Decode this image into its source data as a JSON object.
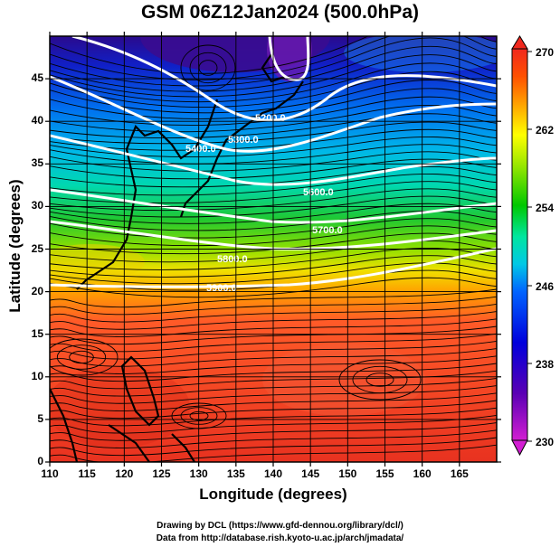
{
  "title": "GSM 06Z12Jan2024 (500.0hPa)",
  "axes": {
    "xlabel": "Longitude (degrees)",
    "ylabel": "Latitude  (degrees)",
    "xticks": [
      "110",
      "115",
      "120",
      "125",
      "130",
      "135",
      "140",
      "145",
      "150",
      "155",
      "160",
      "165"
    ],
    "yticks": [
      "0",
      "5",
      "10",
      "15",
      "20",
      "25",
      "30",
      "35",
      "40",
      "45"
    ],
    "xlim": [
      110,
      170
    ],
    "ylim": [
      0,
      50
    ]
  },
  "colorbar": {
    "ticks": [
      "230",
      "238",
      "246",
      "254",
      "262",
      "270"
    ],
    "range": [
      230,
      270
    ],
    "colors": [
      "#d21ed2",
      "#5a00b4",
      "#0000dc",
      "#0064ff",
      "#00c8e6",
      "#00e6a0",
      "#00c800",
      "#96e600",
      "#ffff00",
      "#ffa000",
      "#ff5000",
      "#f0281e"
    ]
  },
  "contours": {
    "labels": [
      "5200.0",
      "5300.0",
      "5400.0",
      "5600.0",
      "5700.0",
      "5800.0",
      "5900.0"
    ]
  },
  "credits": {
    "line1": "Drawing by DCL (https://www.gfd-dennou.org/library/dcl/)",
    "line2": "Data from http://database.rish.kyoto-u.ac.jp/arch/jmadata/"
  }
}
